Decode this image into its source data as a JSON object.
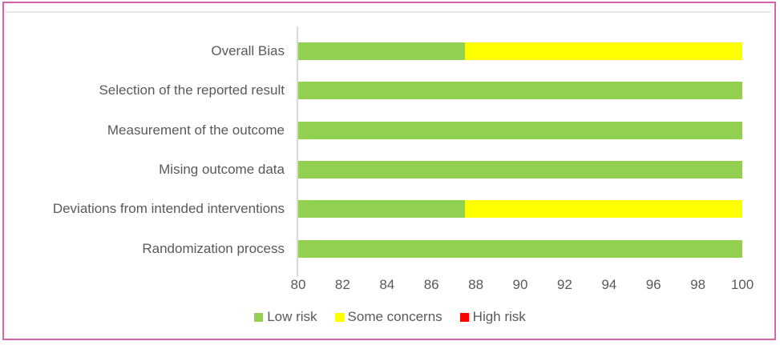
{
  "figure": {
    "background": "#ffffff",
    "outer_border_color": "#d964ae",
    "inner_top_line_color": "#e7e7e7"
  },
  "chart_data": {
    "type": "bar",
    "orientation": "horizontal",
    "stacked": true,
    "title": "",
    "xlabel": "",
    "ylabel": "",
    "grid": false,
    "legend_position": "bottom",
    "xlim": [
      80,
      100
    ],
    "xticks": [
      80,
      82,
      84,
      86,
      88,
      90,
      92,
      94,
      96,
      98,
      100
    ],
    "categories_top_to_bottom": [
      "Overall Bias",
      "Selection of the reported result",
      "Measurement of the outcome",
      "Mising outcome data",
      "Deviations from intended interventions",
      "Randomization process"
    ],
    "series": [
      {
        "name": "Low risk",
        "color": "#92d050",
        "values": [
          87.5,
          100,
          100,
          100,
          87.5,
          100
        ]
      },
      {
        "name": "Some concerns",
        "color": "#ffff00",
        "values": [
          12.5,
          0,
          0,
          0,
          12.5,
          0
        ]
      },
      {
        "name": "High risk",
        "color": "#ff0000",
        "values": [
          0,
          0,
          0,
          0,
          0,
          0
        ]
      }
    ],
    "axis_line_color": "#d9d9d9",
    "text_color": "#595959"
  }
}
